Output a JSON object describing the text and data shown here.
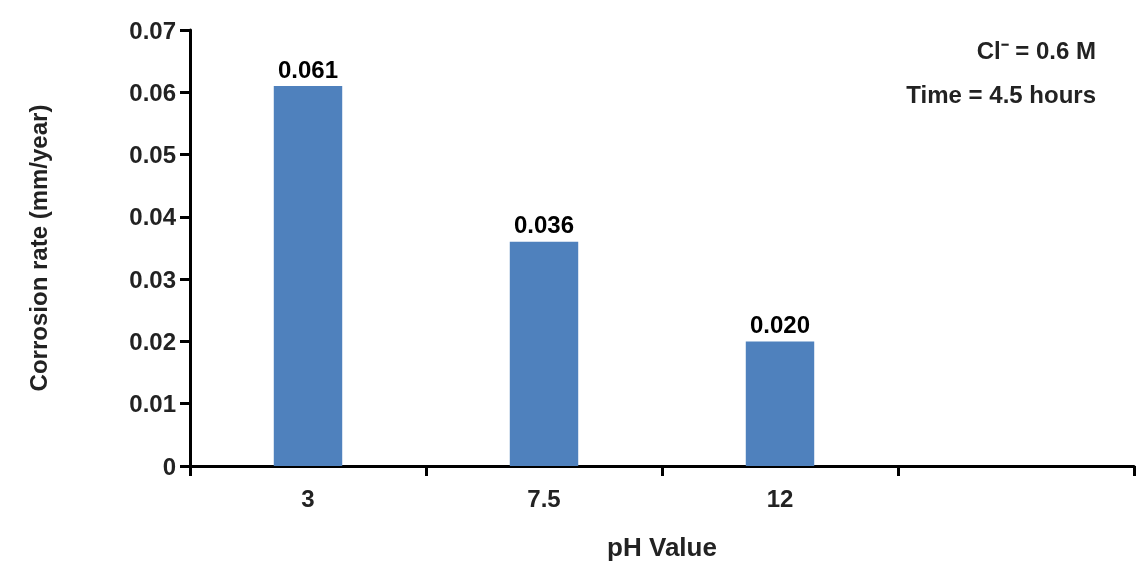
{
  "chart_data": {
    "type": "bar",
    "xlabel": "pH Value",
    "ylabel": "Corrosion rate (mm/year)",
    "categories": [
      "3",
      "7.5",
      "12",
      null
    ],
    "values": [
      0.061,
      0.036,
      0.02,
      null
    ],
    "value_labels": [
      "0.061",
      "0.036",
      "0.020",
      null
    ],
    "color": "#4f81bd",
    "ylim": [
      0,
      0.07
    ],
    "yticks": [
      0,
      0.01,
      0.02,
      0.03,
      0.04,
      0.05,
      0.06,
      0.07
    ],
    "grid": false,
    "annotations": [
      "Cl⁻ = 0.6 M",
      "Time = 4.5 hours"
    ]
  }
}
